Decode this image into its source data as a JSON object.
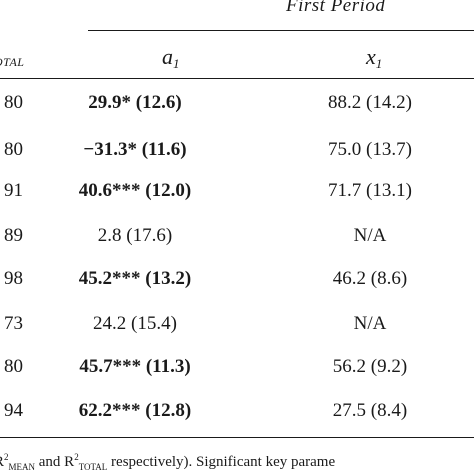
{
  "header": {
    "period": "First Period",
    "col_total": "OTAL",
    "col_a_base": "a",
    "col_a_sub": "1",
    "col_x_base": "x",
    "col_x_sub": "1"
  },
  "rows": [
    {
      "total": "80",
      "a": "29.9* (12.6)",
      "a_bold": true,
      "x": "88.2 (14.2)"
    },
    {
      "total": "80",
      "a": "−31.3* (11.6)",
      "a_bold": true,
      "x": "75.0 (13.7)"
    },
    {
      "total": "91",
      "a": "40.6*** (12.0)",
      "a_bold": true,
      "x": "71.7 (13.1)"
    },
    {
      "total": "89",
      "a": "2.8 (17.6)",
      "a_bold": false,
      "x": "N/A"
    },
    {
      "total": "98",
      "a": "45.2*** (13.2)",
      "a_bold": true,
      "x": "46.2 (8.6)"
    },
    {
      "total": "73",
      "a": "24.2 (15.4)",
      "a_bold": false,
      "x": "N/A"
    },
    {
      "total": "80",
      "a": "45.7*** (11.3)",
      "a_bold": true,
      "x": "56.2 (9.2)"
    },
    {
      "total": "94",
      "a": "62.2*** (12.8)",
      "a_bold": true,
      "x": "27.5 (8.4)"
    }
  ],
  "footnote": {
    "r1": "R",
    "r1_sup": "2",
    "r1_sub": "MEAN",
    "mid": " and R",
    "r2_sup": "2",
    "r2_sub": "TOTAL",
    "tail": " respectively). Significant key parame"
  }
}
